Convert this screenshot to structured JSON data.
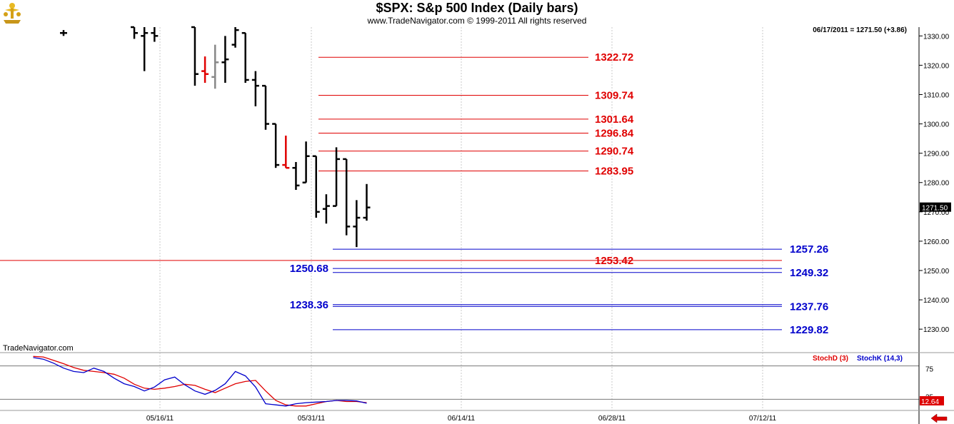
{
  "header": {
    "title": "$SPX:  S&p 500 Index  (Daily bars)",
    "subtitle": "www.TradeNavigator.com © 1999-2011 All rights reserved",
    "readout": "06/17/2011 = 1271.50 (+3.86)",
    "watermark": "TradeNavigator.com"
  },
  "colors": {
    "red_level": "#e00000",
    "blue_level": "#0000cc",
    "bar": "#000000",
    "grid": "#c8c8c8",
    "stoch_d": "#dd0000",
    "stoch_k": "#0000cc"
  },
  "chart_data": [
    {
      "type": "ohlc",
      "ylim": [
        1222,
        1333
      ],
      "y_ticks": [
        1230.0,
        1240.0,
        1250.0,
        1260.0,
        1270.0,
        1280.0,
        1290.0,
        1300.0,
        1310.0,
        1320.0,
        1330.0
      ],
      "x_ticks": [
        "05/16/11",
        "05/31/11",
        "06/14/11",
        "06/28/11",
        "07/12/11"
      ],
      "last_price_label": "1271.50",
      "bars": [
        {
          "x": 0,
          "o": 1331,
          "h": 1332,
          "l": 1330,
          "c": 1331,
          "color": "black"
        },
        {
          "x": 7,
          "o": 1333,
          "h": 1333,
          "l": 1329,
          "c": 1331,
          "color": "black"
        },
        {
          "x": 8,
          "o": 1330,
          "h": 1333,
          "l": 1318,
          "c": 1331,
          "color": "black"
        },
        {
          "x": 9,
          "o": 1331,
          "h": 1333,
          "l": 1328,
          "c": 1330,
          "color": "black"
        },
        {
          "x": 13,
          "o": 1333,
          "h": 1333,
          "l": 1313,
          "c": 1317,
          "color": "black"
        },
        {
          "x": 14,
          "o": 1318,
          "h": 1323,
          "l": 1314,
          "c": 1317,
          "color": "red"
        },
        {
          "x": 15,
          "o": 1316,
          "h": 1327,
          "l": 1312,
          "c": 1321,
          "color": "gray"
        },
        {
          "x": 16,
          "o": 1321,
          "h": 1330,
          "l": 1314,
          "c": 1322,
          "color": "black"
        },
        {
          "x": 17,
          "o": 1327,
          "h": 1333,
          "l": 1326,
          "c": 1332,
          "color": "black"
        },
        {
          "x": 18,
          "o": 1331,
          "h": 1331,
          "l": 1314,
          "c": 1315,
          "color": "black"
        },
        {
          "x": 19,
          "o": 1315,
          "h": 1318,
          "l": 1306,
          "c": 1313,
          "color": "black"
        },
        {
          "x": 20,
          "o": 1313,
          "h": 1313,
          "l": 1298,
          "c": 1300,
          "color": "black"
        },
        {
          "x": 21,
          "o": 1300,
          "h": 1300,
          "l": 1285,
          "c": 1286,
          "color": "black"
        },
        {
          "x": 22,
          "o": 1286,
          "h": 1296,
          "l": 1285,
          "c": 1285,
          "color": "red"
        },
        {
          "x": 23,
          "o": 1285,
          "h": 1287,
          "l": 1277.5,
          "c": 1279,
          "color": "black"
        },
        {
          "x": 24,
          "o": 1280,
          "h": 1294,
          "l": 1280,
          "c": 1289,
          "color": "black"
        },
        {
          "x": 25,
          "o": 1289,
          "h": 1289,
          "l": 1268,
          "c": 1270,
          "color": "black"
        },
        {
          "x": 26,
          "o": 1271,
          "h": 1276,
          "l": 1266,
          "c": 1272,
          "color": "black"
        },
        {
          "x": 27,
          "o": 1272,
          "h": 1292,
          "l": 1272,
          "c": 1288,
          "color": "black"
        },
        {
          "x": 28,
          "o": 1288,
          "h": 1288,
          "l": 1262,
          "c": 1265,
          "color": "black"
        },
        {
          "x": 29,
          "o": 1265,
          "h": 1274,
          "l": 1258,
          "c": 1268,
          "color": "black"
        },
        {
          "x": 30,
          "o": 1268,
          "h": 1279.5,
          "l": 1267,
          "c": 1271.5,
          "color": "black"
        }
      ],
      "levels": [
        {
          "value": 1322.72,
          "label": "1322.72",
          "color": "red",
          "span": "mid",
          "label_side": "right"
        },
        {
          "value": 1309.74,
          "label": "1309.74",
          "color": "red",
          "span": "mid",
          "label_side": "right"
        },
        {
          "value": 1301.64,
          "label": "1301.64",
          "color": "red",
          "span": "mid",
          "label_side": "right"
        },
        {
          "value": 1296.84,
          "label": "1296.84",
          "color": "red",
          "span": "mid",
          "label_side": "right"
        },
        {
          "value": 1290.74,
          "label": "1290.74",
          "color": "red",
          "span": "mid",
          "label_side": "right"
        },
        {
          "value": 1283.95,
          "label": "1283.95",
          "color": "red",
          "span": "mid",
          "label_side": "right"
        },
        {
          "value": 1257.26,
          "label": "1257.26",
          "color": "blue",
          "span": "long",
          "label_side": "right"
        },
        {
          "value": 1253.42,
          "label": "1253.42",
          "color": "red",
          "span": "full",
          "label_side": "right"
        },
        {
          "value": 1250.68,
          "label": "1250.68",
          "color": "blue",
          "span": "long",
          "label_side": "left"
        },
        {
          "value": 1249.32,
          "label": "1249.32",
          "color": "blue",
          "span": "long",
          "label_side": "right"
        },
        {
          "value": 1238.36,
          "label": "1238.36",
          "color": "blue",
          "span": "long",
          "label_side": "left"
        },
        {
          "value": 1237.76,
          "label": "1237.76",
          "color": "blue",
          "span": "long",
          "label_side": "right"
        },
        {
          "value": 1229.82,
          "label": "1229.82",
          "color": "blue",
          "span": "long",
          "label_side": "right"
        }
      ]
    },
    {
      "type": "line",
      "ylim": [
        0,
        100
      ],
      "y_ticks": [
        75,
        25
      ],
      "ref_lines": [
        80,
        20
      ],
      "last_label": "12.64",
      "series": [
        {
          "name": "StochD (3)",
          "color": "red",
          "points": [
            [
              -3,
              97
            ],
            [
              -2,
              96
            ],
            [
              -1,
              90
            ],
            [
              0,
              84
            ],
            [
              1,
              77
            ],
            [
              2,
              72
            ],
            [
              3,
              70
            ],
            [
              4,
              68
            ],
            [
              5,
              65
            ],
            [
              6,
              58
            ],
            [
              7,
              47
            ],
            [
              8,
              40
            ],
            [
              9,
              38
            ],
            [
              10,
              40
            ],
            [
              11,
              43
            ],
            [
              12,
              47
            ],
            [
              13,
              45
            ],
            [
              14,
              38
            ],
            [
              15,
              32
            ],
            [
              16,
              40
            ],
            [
              17,
              48
            ],
            [
              18,
              52
            ],
            [
              19,
              54
            ],
            [
              20,
              35
            ],
            [
              21,
              18
            ],
            [
              22,
              10
            ],
            [
              23,
              8
            ],
            [
              24,
              8
            ],
            [
              25,
              12
            ],
            [
              26,
              16
            ],
            [
              27,
              18
            ],
            [
              28,
              16
            ],
            [
              29,
              16
            ],
            [
              30,
              14
            ]
          ]
        },
        {
          "name": "StochK (14,3)",
          "color": "blue",
          "points": [
            [
              -3,
              95
            ],
            [
              -2,
              92
            ],
            [
              -1,
              85
            ],
            [
              0,
              76
            ],
            [
              1,
              70
            ],
            [
              2,
              68
            ],
            [
              3,
              76
            ],
            [
              4,
              70
            ],
            [
              5,
              58
            ],
            [
              6,
              48
            ],
            [
              7,
              43
            ],
            [
              8,
              35
            ],
            [
              9,
              42
            ],
            [
              10,
              55
            ],
            [
              11,
              60
            ],
            [
              12,
              46
            ],
            [
              13,
              35
            ],
            [
              14,
              29
            ],
            [
              15,
              36
            ],
            [
              16,
              48
            ],
            [
              17,
              70
            ],
            [
              18,
              62
            ],
            [
              19,
              42
            ],
            [
              20,
              12
            ],
            [
              21,
              10
            ],
            [
              22,
              8
            ],
            [
              23,
              12
            ],
            [
              24,
              14
            ],
            [
              25,
              15
            ],
            [
              26,
              16
            ],
            [
              27,
              18
            ],
            [
              28,
              18
            ],
            [
              29,
              17
            ],
            [
              30,
              13
            ]
          ]
        }
      ]
    }
  ]
}
